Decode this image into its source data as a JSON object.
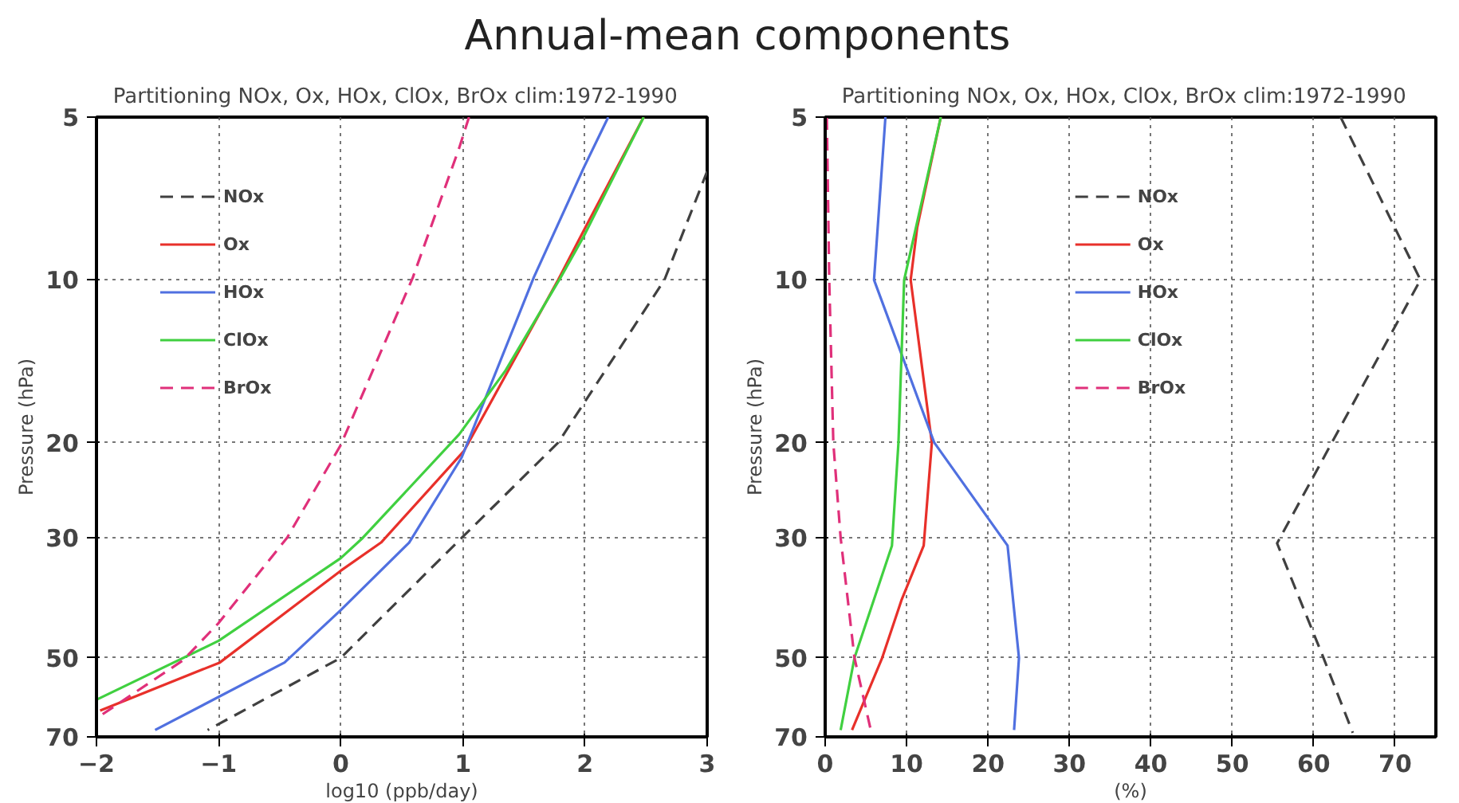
{
  "chart_data": [
    {
      "type": "line",
      "title": "Annual-mean components",
      "subtitle": "Partitioning NOx, Ox, HOx, ClOx, BrOx   clim:1972-1990",
      "xlabel": "log10 (ppb/day)",
      "ylabel": "Pressure (hPa)",
      "xlim": [
        -2,
        3
      ],
      "xticks": [
        -2,
        -1,
        0,
        1,
        2,
        3
      ],
      "ylim": [
        70,
        5
      ],
      "yticks": [
        5,
        10,
        20,
        30,
        50,
        70
      ],
      "log": "y",
      "grid": true,
      "legend": "top left",
      "series": [
        {
          "name": "NOx",
          "color": "#404040",
          "line_style": "dashed",
          "x": [
            3,
            2.65,
            1.78,
            0.99,
            0,
            -1.09
          ],
          "values": [
            6.3,
            10,
            20,
            30,
            50,
            68
          ]
        },
        {
          "name": "Ox",
          "color": "#e8302a",
          "line_style": "solid",
          "x": [
            2.48,
            1.99,
            1.78,
            1.01,
            0.33,
            0,
            -0.99,
            -1.97
          ],
          "values": [
            5,
            8.1,
            10,
            20.7,
            30.6,
            34.5,
            51,
            62.6
          ]
        },
        {
          "name": "HOx",
          "color": "#5070e0",
          "line_style": "solid",
          "x": [
            2.19,
            1.99,
            1.58,
            0.99,
            0.56,
            0,
            -0.46,
            -1.52
          ],
          "values": [
            5,
            6.2,
            9.9,
            21.3,
            30.6,
            40.8,
            51,
            68
          ]
        },
        {
          "name": "ClOx",
          "color": "#40d040",
          "line_style": "solid",
          "x": [
            2.48,
            1.99,
            1.8,
            1.35,
            0.97,
            0.18,
            0,
            -1.0,
            -1.99
          ],
          "values": [
            5,
            8.3,
            9.9,
            14.7,
            19.3,
            30,
            32.7,
            46.5,
            59.6
          ]
        },
        {
          "name": "BrOx",
          "color": "#e0307a",
          "line_style": "dashed",
          "x": [
            1.05,
            0.97,
            0.59,
            0,
            -0.44,
            -1.0,
            -1.29,
            -1.97
          ],
          "values": [
            5,
            5.7,
            9.9,
            20.2,
            30,
            43.1,
            50.5,
            64
          ]
        }
      ]
    },
    {
      "type": "line",
      "subtitle": "Partitioning NOx, Ox, HOx, ClOx, BrOx   clim:1972-1990",
      "xlabel": "(%)",
      "ylabel": "Pressure (hPa)",
      "xlim": [
        0,
        75
      ],
      "xticks": [
        0,
        10,
        20,
        30,
        40,
        50,
        60,
        70
      ],
      "ylim": [
        70,
        5
      ],
      "yticks": [
        5,
        10,
        20,
        30,
        50,
        70
      ],
      "log": "y",
      "grid": true,
      "legend": "top",
      "series": [
        {
          "name": "NOx",
          "color": "#404040",
          "line_style": "dashed",
          "x": [
            63.3,
            73.1,
            55.5,
            61.2,
            64.8
          ],
          "values": [
            5,
            10,
            30.7,
            50,
            68.8
          ]
        },
        {
          "name": "Ox",
          "color": "#e8302a",
          "line_style": "solid",
          "x": [
            14.2,
            11.3,
            10.5,
            13.1,
            12.1,
            9.4,
            7.0,
            3.3
          ],
          "values": [
            5,
            8,
            10,
            20,
            31,
            39,
            50,
            68
          ]
        },
        {
          "name": "HOx",
          "color": "#5070e0",
          "line_style": "solid",
          "x": [
            7.4,
            6.0,
            13.4,
            22.4,
            23.8,
            23.2
          ],
          "values": [
            5,
            10,
            20,
            31,
            50,
            68
          ]
        },
        {
          "name": "ClOx",
          "color": "#40d040",
          "line_style": "solid",
          "x": [
            14.2,
            9.7,
            9.0,
            8.2,
            3.6,
            1.9
          ],
          "values": [
            5,
            10,
            20,
            31,
            50,
            68
          ]
        },
        {
          "name": "BrOx",
          "color": "#e0307a",
          "line_style": "dashed",
          "x": [
            0.2,
            0.5,
            1.0,
            1.9,
            3.6,
            5.6
          ],
          "values": [
            5,
            10,
            20,
            30,
            50,
            68
          ]
        }
      ]
    }
  ]
}
